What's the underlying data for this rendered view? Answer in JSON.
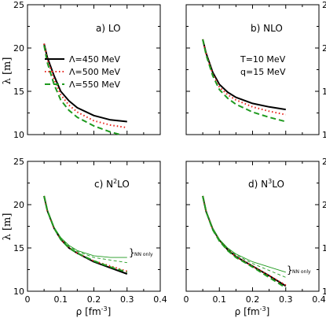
{
  "figure": {
    "ylabel": "λ [m]",
    "xlabel_main": "ρ [fm",
    "xlabel_exp": "-3",
    "xlabel_close": "]",
    "conditions": [
      "T=10 MeV",
      "q=15 MeV"
    ],
    "legend": [
      {
        "label": "Λ=450 MeV",
        "color": "#000000",
        "dash": "solid"
      },
      {
        "label": "Λ=500 MeV",
        "color": "#e8231c",
        "dash": "dotted"
      },
      {
        "label": "Λ=550 MeV",
        "color": "#1f9a1f",
        "dash": "dashed"
      }
    ],
    "nn_only_label": "NN only"
  },
  "chart_data": [
    {
      "type": "line",
      "panel_label": "a)  LO",
      "xlim": [
        0,
        0.4
      ],
      "ylim": [
        10,
        25
      ],
      "xticks": [
        "0",
        "0.1",
        "0.2",
        "0.3",
        "0.4"
      ],
      "yticks": [
        "10",
        "15",
        "20",
        "25"
      ],
      "series": [
        {
          "name": "Λ=450 MeV",
          "color": "#000000",
          "dash": "solid",
          "x": [
            0.05,
            0.06,
            0.08,
            0.1,
            0.125,
            0.15,
            0.2,
            0.25,
            0.3
          ],
          "y": [
            20.5,
            18.9,
            16.8,
            15.0,
            13.9,
            13.1,
            12.2,
            11.7,
            11.5
          ]
        },
        {
          "name": "Λ=500 MeV",
          "color": "#e8231c",
          "dash": "dotted",
          "x": [
            0.05,
            0.06,
            0.08,
            0.1,
            0.125,
            0.15,
            0.2,
            0.25,
            0.3
          ],
          "y": [
            20.5,
            18.7,
            16.4,
            14.6,
            13.4,
            12.6,
            11.6,
            11.1,
            10.8
          ]
        },
        {
          "name": "Λ=550 MeV",
          "color": "#1f9a1f",
          "dash": "dashed",
          "x": [
            0.05,
            0.06,
            0.08,
            0.1,
            0.125,
            0.15,
            0.2,
            0.25,
            0.28
          ],
          "y": [
            20.3,
            18.3,
            15.8,
            14.0,
            12.8,
            12.0,
            11.0,
            10.3,
            10.0
          ]
        }
      ]
    },
    {
      "type": "line",
      "panel_label": "b)  NLO",
      "xlim": [
        0,
        0.4
      ],
      "ylim": [
        10,
        25
      ],
      "xticks": [
        "0",
        "0.1",
        "0.2",
        "0.3",
        "0.4"
      ],
      "yticks": [
        "10",
        "15",
        "20",
        "25"
      ],
      "series": [
        {
          "name": "Λ=450 MeV",
          "color": "#000000",
          "dash": "solid",
          "x": [
            0.05,
            0.06,
            0.08,
            0.1,
            0.125,
            0.15,
            0.2,
            0.25,
            0.3
          ],
          "y": [
            21.0,
            19.4,
            17.2,
            15.8,
            14.9,
            14.3,
            13.6,
            13.2,
            12.9
          ]
        },
        {
          "name": "Λ=500 MeV",
          "color": "#e8231c",
          "dash": "dotted",
          "x": [
            0.05,
            0.06,
            0.08,
            0.1,
            0.125,
            0.15,
            0.2,
            0.25,
            0.3
          ],
          "y": [
            21.0,
            19.3,
            17.0,
            15.5,
            14.6,
            14.0,
            13.2,
            12.7,
            12.3
          ]
        },
        {
          "name": "Λ=550 MeV",
          "color": "#1f9a1f",
          "dash": "dashed",
          "x": [
            0.05,
            0.06,
            0.08,
            0.1,
            0.125,
            0.15,
            0.2,
            0.25,
            0.3
          ],
          "y": [
            21.0,
            19.2,
            16.8,
            15.2,
            14.2,
            13.5,
            12.6,
            12.0,
            11.5
          ]
        }
      ]
    },
    {
      "type": "line",
      "panel_label_main": "c)  N",
      "panel_label_sup": "2",
      "panel_label_end": "LO",
      "xlim": [
        0,
        0.4
      ],
      "ylim": [
        10,
        25
      ],
      "xticks": [
        "0",
        "0.1",
        "0.2",
        "0.3",
        "0.4"
      ],
      "yticks": [
        "10",
        "15",
        "20",
        "25"
      ],
      "series": [
        {
          "name": "Λ=450 MeV",
          "color": "#000000",
          "dash": "solid",
          "x": [
            0.05,
            0.06,
            0.08,
            0.1,
            0.125,
            0.15,
            0.2,
            0.25,
            0.3
          ],
          "y": [
            21.0,
            19.3,
            17.3,
            16.0,
            15.0,
            14.4,
            13.4,
            12.7,
            12.0
          ]
        },
        {
          "name": "Λ=500 MeV",
          "color": "#e8231c",
          "dash": "dotted",
          "x": [
            0.05,
            0.06,
            0.08,
            0.1,
            0.125,
            0.15,
            0.2,
            0.25,
            0.3
          ],
          "y": [
            21.0,
            19.3,
            17.3,
            16.0,
            15.0,
            14.4,
            13.5,
            12.9,
            12.3
          ]
        },
        {
          "name": "Λ=550 MeV",
          "color": "#1f9a1f",
          "dash": "dashed",
          "x": [
            0.05,
            0.06,
            0.08,
            0.1,
            0.125,
            0.15,
            0.2,
            0.25,
            0.3
          ],
          "y": [
            21.0,
            19.3,
            17.3,
            16.0,
            15.0,
            14.4,
            13.5,
            12.8,
            12.2
          ]
        },
        {
          "name": "NN only",
          "color": "#1f9a1f",
          "dash": "solid",
          "thin": true,
          "x": [
            0.05,
            0.06,
            0.08,
            0.1,
            0.125,
            0.15,
            0.2,
            0.25,
            0.3
          ],
          "y": [
            21.0,
            19.4,
            17.4,
            16.2,
            15.3,
            14.7,
            14.1,
            13.9,
            13.9
          ]
        },
        {
          "name": "NN only",
          "color": "#1f9a1f",
          "dash": "dashed",
          "thin": true,
          "x": [
            0.05,
            0.06,
            0.08,
            0.1,
            0.125,
            0.15,
            0.2,
            0.25,
            0.3
          ],
          "y": [
            21.0,
            19.4,
            17.4,
            16.2,
            15.2,
            14.6,
            13.9,
            13.6,
            13.3
          ]
        }
      ]
    },
    {
      "type": "line",
      "panel_label_main": "d)  N",
      "panel_label_sup": "3",
      "panel_label_end": "LO",
      "xlim": [
        0,
        0.4
      ],
      "ylim": [
        10,
        25
      ],
      "xticks": [
        "0",
        "0.1",
        "0.2",
        "0.3",
        "0.4"
      ],
      "yticks": [
        "10",
        "15",
        "20",
        "25"
      ],
      "series": [
        {
          "name": "Λ=450 MeV",
          "color": "#000000",
          "dash": "solid",
          "x": [
            0.05,
            0.06,
            0.08,
            0.1,
            0.125,
            0.15,
            0.2,
            0.25,
            0.3
          ],
          "y": [
            21.0,
            19.2,
            17.2,
            15.9,
            14.8,
            14.0,
            12.9,
            11.8,
            10.6
          ]
        },
        {
          "name": "Λ=500 MeV",
          "color": "#e8231c",
          "dash": "dotted",
          "x": [
            0.05,
            0.06,
            0.08,
            0.1,
            0.125,
            0.15,
            0.2,
            0.25,
            0.3
          ],
          "y": [
            21.0,
            19.2,
            17.2,
            15.9,
            14.8,
            14.0,
            12.9,
            11.8,
            10.7
          ]
        },
        {
          "name": "Λ=550 MeV",
          "color": "#1f9a1f",
          "dash": "dashed",
          "x": [
            0.05,
            0.06,
            0.08,
            0.1,
            0.125,
            0.15,
            0.2,
            0.25,
            0.3
          ],
          "y": [
            21.0,
            19.2,
            17.1,
            15.8,
            14.7,
            13.9,
            12.8,
            11.6,
            10.4
          ]
        },
        {
          "name": "NN only",
          "color": "#1f9a1f",
          "dash": "solid",
          "thin": true,
          "x": [
            0.05,
            0.06,
            0.08,
            0.1,
            0.125,
            0.15,
            0.2,
            0.25,
            0.3
          ],
          "y": [
            21.0,
            19.2,
            17.3,
            16.0,
            15.0,
            14.3,
            13.4,
            12.8,
            12.2
          ]
        },
        {
          "name": "NN only",
          "color": "#1f9a1f",
          "dash": "dashed",
          "thin": true,
          "x": [
            0.05,
            0.06,
            0.08,
            0.1,
            0.125,
            0.15,
            0.2,
            0.25,
            0.3
          ],
          "y": [
            21.0,
            19.2,
            17.2,
            15.9,
            14.9,
            14.2,
            13.2,
            12.4,
            11.6
          ]
        }
      ]
    }
  ]
}
